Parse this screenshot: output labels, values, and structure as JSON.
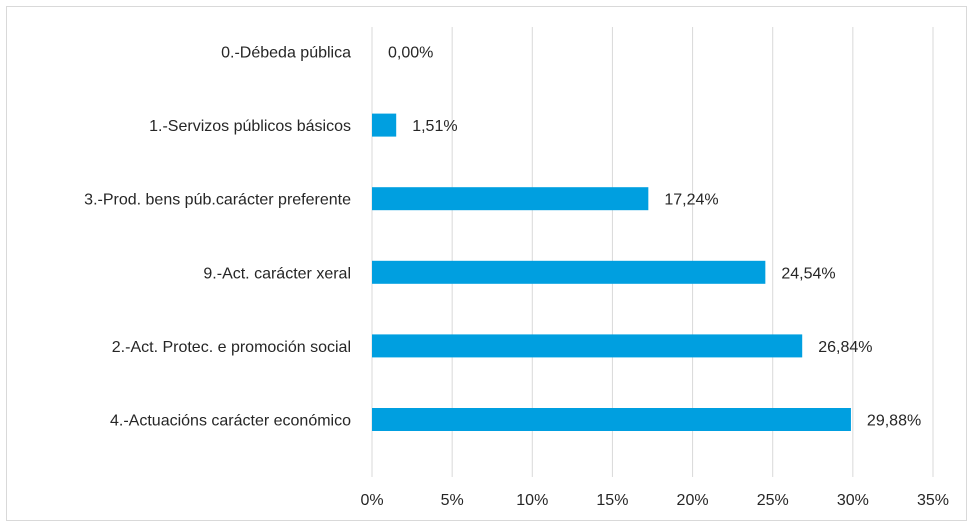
{
  "chart_data": {
    "type": "bar",
    "orientation": "horizontal",
    "categories": [
      "0.-Débeda pública",
      "1.-Servizos públicos básicos",
      "3.-Prod. bens púb.carácter preferente",
      "9.-Act. carácter xeral",
      "2.-Act. Protec. e promoción social",
      "4.-Actuacións carácter económico"
    ],
    "values": [
      0.0,
      1.51,
      17.24,
      24.54,
      26.84,
      29.88
    ],
    "value_labels": [
      "0,00%",
      "1,51%",
      "17,24%",
      "24,54%",
      "26,84%",
      "29,88%"
    ],
    "x_ticks": [
      0,
      5,
      10,
      15,
      20,
      25,
      30,
      35
    ],
    "x_tick_labels": [
      "0%",
      "5%",
      "10%",
      "15%",
      "20%",
      "25%",
      "30%",
      "35%"
    ],
    "xlim": [
      0,
      35
    ],
    "title": "",
    "xlabel": "",
    "ylabel": "",
    "grid": "vertical",
    "legend": "none",
    "colors": {
      "bar": "#009FE0",
      "grid": "#d9d9d9",
      "text": "#262626"
    }
  }
}
